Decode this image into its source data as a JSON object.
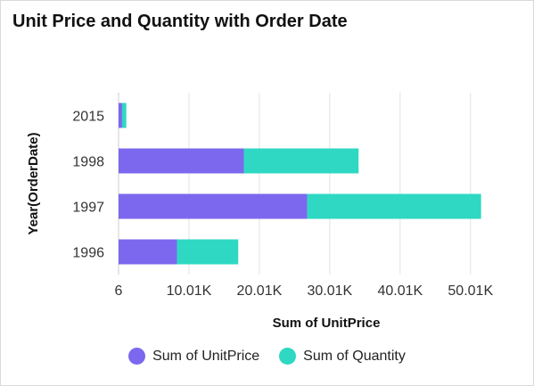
{
  "title": "Unit Price and Quantity with Order Date",
  "chart_data": {
    "type": "bar",
    "orientation": "horizontal",
    "stacked": true,
    "categories": [
      "2015",
      "1998",
      "1997",
      "1996"
    ],
    "series": [
      {
        "name": "Sum of UnitPrice",
        "color": "#7b68ee",
        "values": [
          500,
          17800,
          26800,
          8300
        ]
      },
      {
        "name": "Sum of Quantity",
        "color": "#2ed8c3",
        "values": [
          600,
          16300,
          24700,
          8700
        ]
      }
    ],
    "xlabel": "Sum of UnitPrice",
    "ylabel": "Year(OrderDate)",
    "xticks": [
      {
        "value": 6,
        "label": "6"
      },
      {
        "value": 10006,
        "label": "10.01K"
      },
      {
        "value": 20006,
        "label": "20.01K"
      },
      {
        "value": 30006,
        "label": "30.01K"
      },
      {
        "value": 40006,
        "label": "40.01K"
      },
      {
        "value": 50006,
        "label": "50.01K"
      }
    ],
    "xlim": [
      6,
      57000
    ],
    "grid": true,
    "legend_position": "bottom"
  }
}
